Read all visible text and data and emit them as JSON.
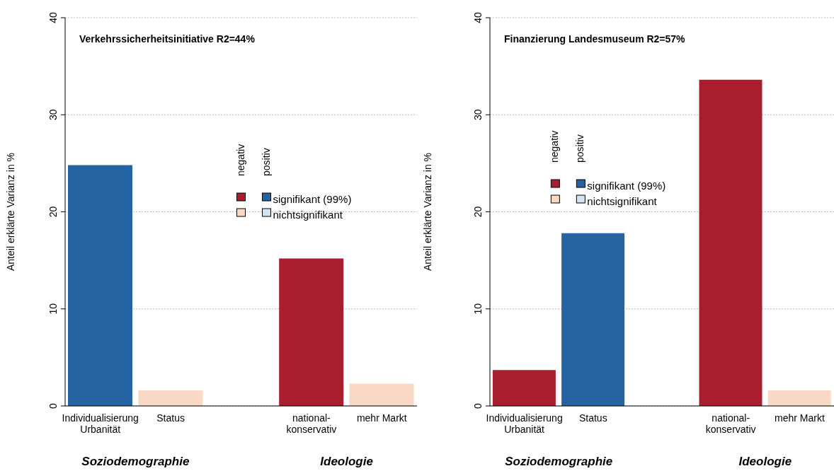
{
  "chart_data": [
    {
      "type": "bar",
      "title": "Verkehrssicherheitsinitiative R2=44%",
      "ylabel": "Anteil erklärte Varianz in %",
      "categories": [
        "Individualisierung\nUrbanität",
        "Status",
        null,
        "national-\nkonservativ",
        "mehr Markt"
      ],
      "stacked": true,
      "series": [
        {
          "color": "#a91e2f",
          "values": [
            null,
            null,
            null,
            15.2,
            null
          ]
        },
        {
          "color": "#2563a3",
          "values": [
            24.8,
            null,
            null,
            null,
            null
          ]
        },
        {
          "color": "#f9d9c6",
          "values": [
            null,
            1.6,
            null,
            null,
            2.3
          ]
        },
        {
          "color": "#d3e3ef",
          "values": [
            null,
            null,
            null,
            null,
            null
          ]
        }
      ],
      "ylim": [
        0,
        40
      ],
      "yticks": [
        0,
        10,
        20,
        30,
        40
      ],
      "grid": "y",
      "annotations": [
        "Soziodemographie",
        "Ideologie",
        "negativ",
        "positiv",
        "signifikant (99%)",
        "nichtsignifikant"
      ]
    },
    {
      "type": "bar",
      "title": "Finanzierung Landesmuseum R2=57%",
      "ylabel": "Anteil erklärte Varianz in %",
      "categories": [
        "Individualisierung\nUrbanität",
        "Status",
        null,
        "national-\nkonservativ",
        "mehr Markt"
      ],
      "stacked": true,
      "series": [
        {
          "color": "#a91e2f",
          "values": [
            3.7,
            null,
            null,
            33.6,
            null
          ]
        },
        {
          "color": "#2563a3",
          "values": [
            null,
            17.8,
            null,
            null,
            null
          ]
        },
        {
          "color": "#f9d9c6",
          "values": [
            null,
            null,
            null,
            null,
            1.6
          ]
        },
        {
          "color": "#d3e3ef",
          "values": [
            null,
            null,
            null,
            null,
            null
          ]
        }
      ],
      "ylim": [
        0,
        40
      ],
      "yticks": [
        0,
        10,
        20,
        30,
        40
      ],
      "grid": "y",
      "annotations": [
        "Soziodemographie",
        "Ideologie",
        "negativ",
        "positiv",
        "signifikant (99%)",
        "nichtsignifikant"
      ]
    }
  ]
}
